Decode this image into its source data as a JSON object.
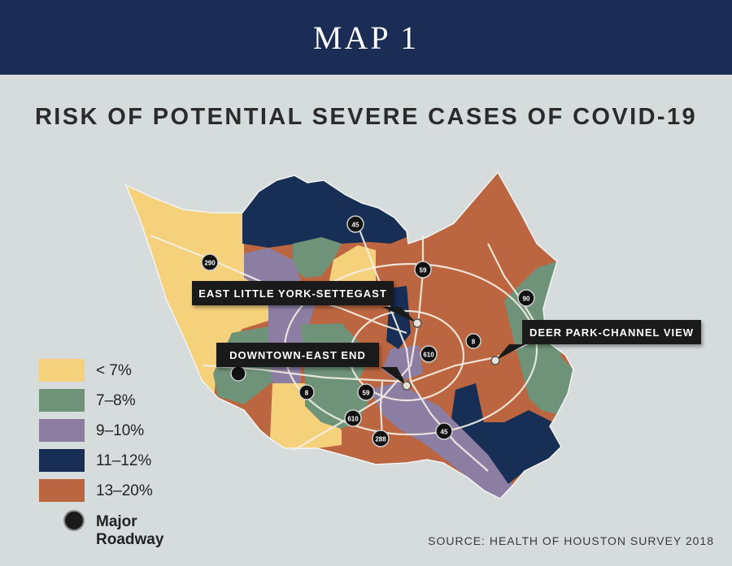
{
  "header": {
    "title": "MAP 1"
  },
  "subtitle": "RISK OF POTENTIAL SEVERE CASES OF COVID-19",
  "callouts": [
    {
      "label": "EAST LITTLE YORK-SETTEGAST"
    },
    {
      "label": "DOWNTOWN-EAST END"
    },
    {
      "label": "DEER PARK-CHANNEL VIEW"
    }
  ],
  "roadways": [
    "45",
    "290",
    "59",
    "90",
    "8",
    "610",
    "59",
    "8",
    "610",
    "288",
    "45"
  ],
  "legend": {
    "items": [
      {
        "label": "< 7%",
        "color": "#f6d17b"
      },
      {
        "label": "7–8%",
        "color": "#6e9379"
      },
      {
        "label": "9–10%",
        "color": "#8c7ea3"
      },
      {
        "label": "11–12%",
        "color": "#172e55"
      },
      {
        "label": "13–20%",
        "color": "#bb6640"
      }
    ],
    "roadway_label": "Major Roadway"
  },
  "source": "SOURCE: HEALTH OF HOUSTON SURVEY 2018"
}
